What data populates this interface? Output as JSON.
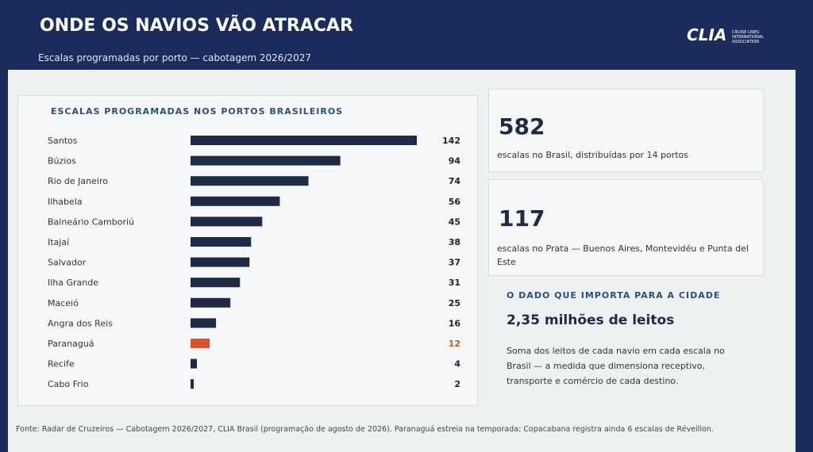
{
  "header": {
    "title": "ONDE OS NAVIOS VÃO ATRACAR",
    "subtitle": "Escalas programadas por porto — cabotagem 2026/2027",
    "logo": "CLIA",
    "logo_caption": "CRUISE LINES INTERNATIONAL ASSOCIATION"
  },
  "chart_data": {
    "type": "hbar",
    "title": "ESCALAS PROGRAMADAS NOS PORTOS BRASILEIROS",
    "categories": [
      "Santos",
      "Búzios",
      "Rio de Janeiro",
      "Ilhabela",
      "Balneário Camboriú",
      "Itajaí",
      "Salvador",
      "Ilha Grande",
      "Maceió",
      "Angra dos Reis",
      "Paranaguá",
      "Recife",
      "Cabo Frio"
    ],
    "values": [
      142,
      94,
      74,
      56,
      45,
      38,
      37,
      31,
      25,
      16,
      12,
      4,
      2
    ],
    "colors": [
      "#1f2b45",
      "#1f2b45",
      "#1f2b45",
      "#1f2b45",
      "#1f2b45",
      "#1f2b45",
      "#1f2b45",
      "#1f2b45",
      "#1f2b45",
      "#1f2b45",
      "#d9542b",
      "#1f2b45",
      "#1f2b45"
    ]
  },
  "stats": [
    {
      "value": 582,
      "text": "escalas no Brasil, distribuídas por 14 portos"
    },
    {
      "value": 117,
      "text": "escalas no Prata — Buenos Aires, Montevidéu e Punta del Este"
    }
  ],
  "highlight": {
    "kicker": "O DADO QUE IMPORTA PARA A CIDADE",
    "headline": "2,35 milhões de leitos",
    "text": "Soma dos leitos de cada navio em cada escala no Brasil — a medida que dimensiona receptivo, transporte e comércio de cada destino."
  },
  "footer": "Fonte: Radar de Cruzeiros — Cabotagem 2026/2027, CLIA Brasil (programação de agosto de 2026). Paranaguá estreia na temporada; Copacabana registra ainda 6 escalas de Réveillon."
}
